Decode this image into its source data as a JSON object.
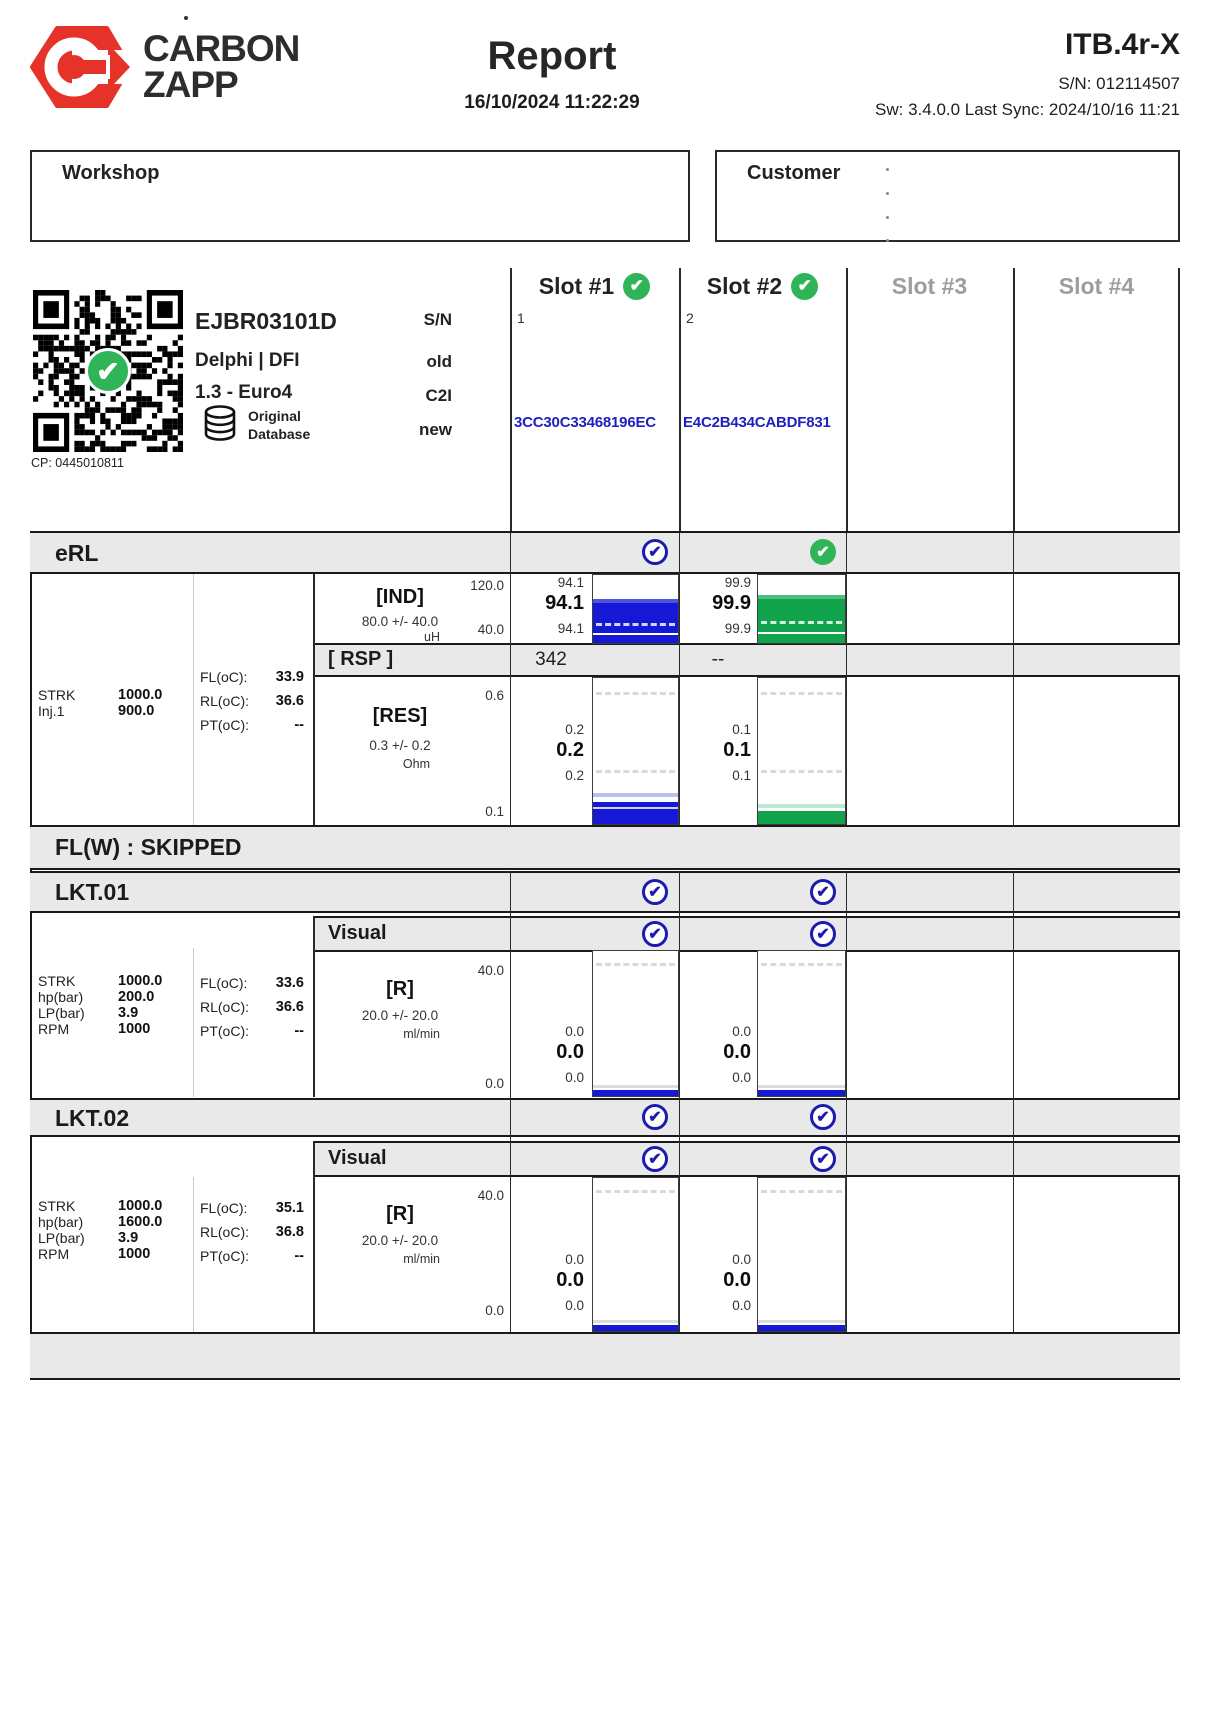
{
  "header": {
    "brand_line1": "CARBON",
    "brand_line2": "ZAPP",
    "title": "Report",
    "datetime": "16/10/2024 11:22:29",
    "device": "ITB.4r-X",
    "serial": "S/N: 012114507",
    "sw_line": "Sw: 3.4.0.0 Last Sync: 2024/10/16 11:21"
  },
  "panels": {
    "workshop_label": "Workshop",
    "customer_label": "Customer"
  },
  "injector": {
    "model": "EJBR03101D",
    "maker": "Delphi | DFI",
    "variant": "1.3 - Euro4",
    "db_line1": "Original",
    "db_line2": "Database",
    "cp": "CP: 0445010811",
    "label_sn": "S/N",
    "label_old": "old",
    "label_c2i": "C2I",
    "label_new": "new"
  },
  "slots": {
    "s1": {
      "label": "Slot #1",
      "index": "1",
      "c2i": "3CC30C33468196EC",
      "status": "pass"
    },
    "s2": {
      "label": "Slot #2",
      "index": "2",
      "c2i": "E4C2B434CABDF831",
      "status": "pass"
    },
    "s3": {
      "label": "Slot #3",
      "status": "empty"
    },
    "s4": {
      "label": "Slot #4",
      "status": "empty"
    }
  },
  "erl": {
    "title": "eRL",
    "params": {
      "strk_label": "STRK",
      "strk": "1000.0",
      "inj_label": "Inj.1",
      "inj": "900.0"
    },
    "temps": {
      "fl_label": "FL(oC):",
      "fl": "33.9",
      "rl_label": "RL(oC):",
      "rl": "36.6",
      "pt_label": "PT(oC):",
      "pt": "--"
    },
    "ind": {
      "name": "[IND]",
      "tolerance": "80.0 +/- 40.0",
      "unit": "uH",
      "scale_top": "120.0",
      "scale_bottom": "40.0",
      "s1": {
        "max": "94.1",
        "avg": "94.1",
        "min": "94.1",
        "fill_pct": 65,
        "color": "blue"
      },
      "s2": {
        "max": "99.9",
        "avg": "99.9",
        "min": "99.9",
        "fill_pct": 70,
        "color": "green"
      }
    },
    "rsp": {
      "name": "[ RSP ]",
      "s1": "342",
      "s2": "--"
    },
    "res": {
      "name": "[RES]",
      "tolerance": "0.3 +/- 0.2",
      "unit": "Ohm",
      "scale_top": "0.6",
      "scale_bottom": "0.1",
      "s1": {
        "max": "0.2",
        "avg": "0.2",
        "min": "0.2",
        "fill_pct": 15,
        "color": "blue"
      },
      "s2": {
        "max": "0.1",
        "avg": "0.1",
        "min": "0.1",
        "fill_pct": 9,
        "color": "green"
      }
    }
  },
  "flw": {
    "title": "FL(W) : SKIPPED"
  },
  "lkt01": {
    "title": "LKT.01",
    "visual_label": "Visual",
    "params": {
      "strk_label": "STRK",
      "strk": "1000.0",
      "hp_label": "hp(bar)",
      "hp": "200.0",
      "lp_label": "LP(bar)",
      "lp": "3.9",
      "rpm_label": "RPM",
      "rpm": "1000"
    },
    "temps": {
      "fl_label": "FL(oC):",
      "fl": "33.6",
      "rl_label": "RL(oC):",
      "rl": "36.6",
      "pt_label": "PT(oC):",
      "pt": "--"
    },
    "r": {
      "name": "[R]",
      "tolerance": "20.0 +/- 20.0",
      "unit": "ml/min",
      "scale_top": "40.0",
      "scale_bottom": "0.0",
      "s1": {
        "max": "0.0",
        "avg": "0.0",
        "min": "0.0",
        "fill_pct": 4,
        "color": "blue"
      },
      "s2": {
        "max": "0.0",
        "avg": "0.0",
        "min": "0.0",
        "fill_pct": 4,
        "color": "blue"
      }
    }
  },
  "lkt02": {
    "title": "LKT.02",
    "visual_label": "Visual",
    "params": {
      "strk_label": "STRK",
      "strk": "1000.0",
      "hp_label": "hp(bar)",
      "hp": "1600.0",
      "lp_label": "LP(bar)",
      "lp": "3.9",
      "rpm_label": "RPM",
      "rpm": "1000"
    },
    "temps": {
      "fl_label": "FL(oC):",
      "fl": "35.1",
      "rl_label": "RL(oC):",
      "rl": "36.8",
      "pt_label": "PT(oC):",
      "pt": "--"
    },
    "r": {
      "name": "[R]",
      "tolerance": "20.0 +/- 20.0",
      "unit": "ml/min",
      "scale_top": "40.0",
      "scale_bottom": "0.0",
      "s1": {
        "max": "0.0",
        "avg": "0.0",
        "min": "0.0",
        "fill_pct": 4,
        "color": "blue"
      },
      "s2": {
        "max": "0.0",
        "avg": "0.0",
        "min": "0.0",
        "fill_pct": 4,
        "color": "blue"
      }
    }
  },
  "colors": {
    "brand_red": "#e6332a",
    "bar_blue": "#1518d4",
    "bar_green": "#12a34d",
    "check_green": "#2fb457",
    "check_blue": "#1b1bb0",
    "band_gray": "#e9e9e9",
    "c2i_blue": "#2020bf",
    "inactive_slot": "#9d9d9d"
  }
}
